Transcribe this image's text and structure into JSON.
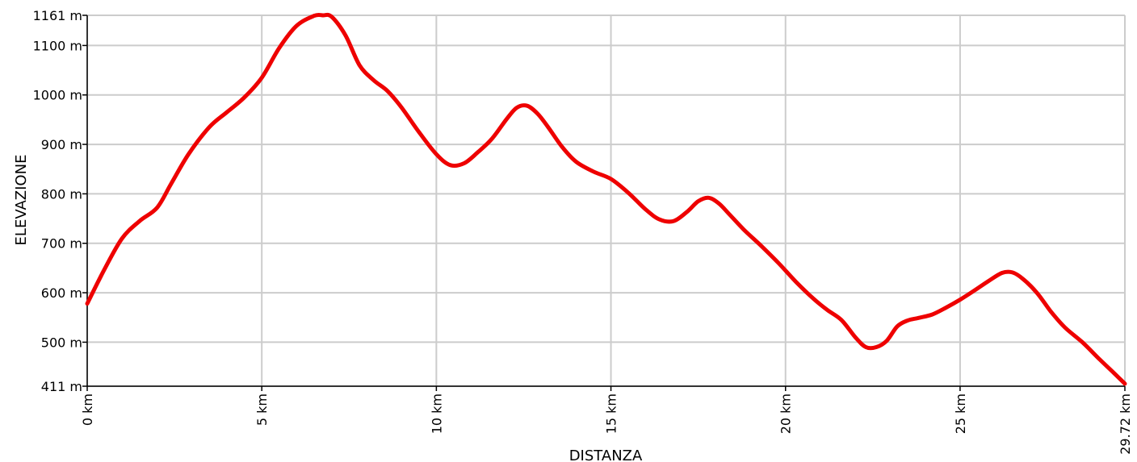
{
  "chart_data": {
    "type": "line",
    "xlabel": "DISTANZA",
    "ylabel": "ELEVAZIONE",
    "xlim": [
      0,
      29.72
    ],
    "ylim": [
      411,
      1161
    ],
    "x_ticks": [
      {
        "value": 0,
        "label": "0 km"
      },
      {
        "value": 5,
        "label": "5 km"
      },
      {
        "value": 10,
        "label": "10 km"
      },
      {
        "value": 15,
        "label": "15 km"
      },
      {
        "value": 20,
        "label": "20 km"
      },
      {
        "value": 25,
        "label": "25 km"
      },
      {
        "value": 29.72,
        "label": "29.72 km"
      }
    ],
    "y_ticks": [
      {
        "value": 411,
        "label": "411 m"
      },
      {
        "value": 500,
        "label": "500 m"
      },
      {
        "value": 600,
        "label": "600 m"
      },
      {
        "value": 700,
        "label": "700 m"
      },
      {
        "value": 800,
        "label": "800 m"
      },
      {
        "value": 900,
        "label": "900 m"
      },
      {
        "value": 1000,
        "label": "1000 m"
      },
      {
        "value": 1100,
        "label": "1100 m"
      },
      {
        "value": 1161,
        "label": "1161 m"
      }
    ],
    "grid": true,
    "series": [
      {
        "color": "#ee0000",
        "x": [
          0,
          0.5,
          1.0,
          1.5,
          2.0,
          2.4,
          2.9,
          3.5,
          4.0,
          4.5,
          5.0,
          5.5,
          6.0,
          6.5,
          6.75,
          7.0,
          7.4,
          7.8,
          8.2,
          8.6,
          9.0,
          9.5,
          10.0,
          10.4,
          10.8,
          11.2,
          11.6,
          12.0,
          12.3,
          12.6,
          12.9,
          13.2,
          13.6,
          14.0,
          14.5,
          15.0,
          15.5,
          16.0,
          16.4,
          16.8,
          17.2,
          17.5,
          17.8,
          18.1,
          18.4,
          18.8,
          19.3,
          19.8,
          20.3,
          20.8,
          21.2,
          21.6,
          22.0,
          22.3,
          22.6,
          22.9,
          23.2,
          23.5,
          23.8,
          24.2,
          24.6,
          25.0,
          25.4,
          25.8,
          26.2,
          26.5,
          26.8,
          27.2,
          27.6,
          28.0,
          28.5,
          29.0,
          29.4,
          29.72
        ],
        "y": [
          578,
          648,
          710,
          745,
          772,
          820,
          880,
          935,
          965,
          995,
          1035,
          1095,
          1140,
          1160,
          1161,
          1158,
          1120,
          1060,
          1030,
          1008,
          975,
          925,
          880,
          858,
          862,
          885,
          912,
          950,
          974,
          978,
          962,
          935,
          895,
          865,
          845,
          830,
          802,
          768,
          748,
          745,
          765,
          785,
          792,
          780,
          758,
          728,
          695,
          660,
          622,
          588,
          565,
          545,
          510,
          490,
          490,
          503,
          532,
          544,
          549,
          556,
          570,
          586,
          604,
          623,
          640,
          641,
          628,
          600,
          562,
          530,
          500,
          465,
          438,
          416
        ]
      }
    ]
  }
}
